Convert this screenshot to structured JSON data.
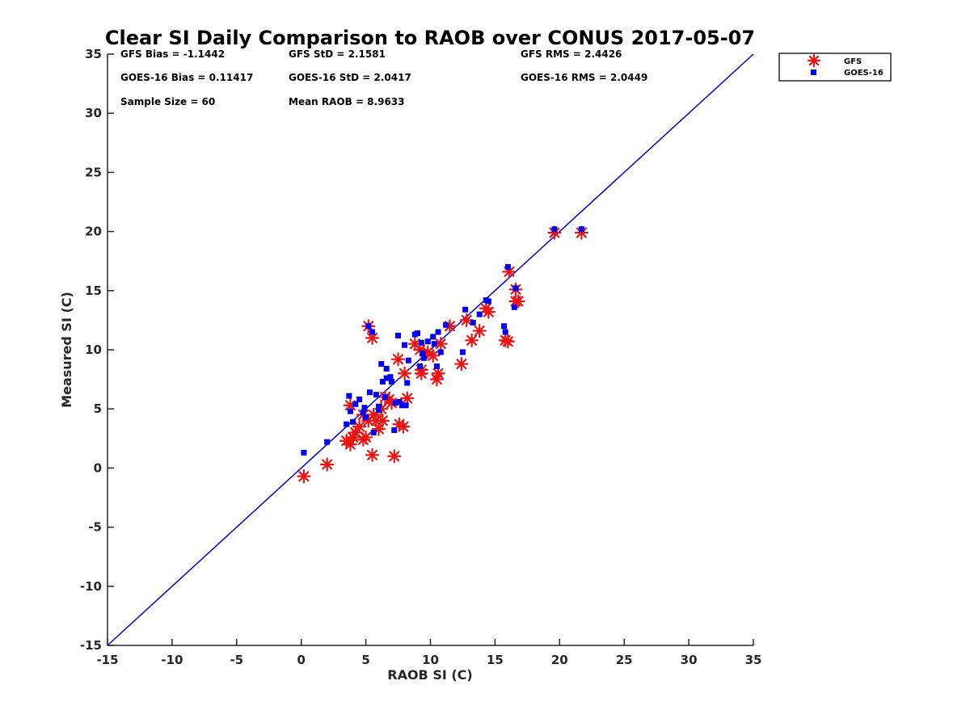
{
  "chart_data": {
    "type": "scatter",
    "title": "Clear SI Daily Comparison to RAOB over CONUS 2017-05-07",
    "xlabel": "RAOB SI (C)",
    "ylabel": "Measured SI (C)",
    "xlim": [
      -15,
      35
    ],
    "ylim": [
      -15,
      35
    ],
    "xticks": [
      "-15",
      "-10",
      "-5",
      "0",
      "5",
      "10",
      "15",
      "20",
      "25",
      "30",
      "35"
    ],
    "yticks": [
      "-15",
      "-10",
      "-5",
      "0",
      "5",
      "10",
      "15",
      "20",
      "25",
      "30",
      "35"
    ],
    "grid": false,
    "legend_position": "outside top-right",
    "reference_line": {
      "type": "one-to-one",
      "from": [
        -15,
        -15
      ],
      "to": [
        35,
        35
      ],
      "color": "#0000cc"
    },
    "stats": {
      "gfs_bias": "GFS Bias = -1.1442",
      "gfs_std": "GFS StD = 2.1581",
      "gfs_rms": "GFS RMS = 2.4426",
      "goes_bias": "GOES-16 Bias = 0.11417",
      "goes_std": "GOES-16 StD = 2.0417",
      "goes_rms": "GOES-16 RMS = 2.0449",
      "sample_size": "Sample Size = 60",
      "mean_raob": "Mean RAOB = 8.9633"
    },
    "series": [
      {
        "name": "GFS",
        "marker": "asterisk",
        "color": "#ee1111",
        "points": [
          [
            0.2,
            -0.7
          ],
          [
            2.0,
            0.3
          ],
          [
            3.5,
            2.3
          ],
          [
            3.8,
            2.0
          ],
          [
            4.0,
            2.6
          ],
          [
            4.2,
            3.0
          ],
          [
            3.8,
            5.3
          ],
          [
            4.5,
            3.5
          ],
          [
            4.8,
            4.5
          ],
          [
            4.8,
            2.4
          ],
          [
            5.0,
            2.6
          ],
          [
            5.2,
            4.0
          ],
          [
            5.5,
            1.1
          ],
          [
            5.6,
            4.5
          ],
          [
            5.8,
            4.0
          ],
          [
            6.0,
            3.3
          ],
          [
            6.2,
            5.0
          ],
          [
            6.3,
            4.0
          ],
          [
            6.5,
            6.0
          ],
          [
            6.8,
            5.8
          ],
          [
            7.0,
            5.5
          ],
          [
            7.2,
            1.0
          ],
          [
            7.5,
            9.2
          ],
          [
            7.6,
            3.7
          ],
          [
            7.9,
            3.5
          ],
          [
            8.2,
            5.9
          ],
          [
            8.0,
            8.0
          ],
          [
            8.8,
            10.5
          ],
          [
            9.2,
            10.0
          ],
          [
            9.3,
            8.3
          ],
          [
            9.3,
            8.0
          ],
          [
            9.8,
            9.8
          ],
          [
            10.2,
            9.5
          ],
          [
            10.5,
            7.5
          ],
          [
            10.6,
            8.0
          ],
          [
            10.8,
            10.5
          ],
          [
            5.2,
            12.0
          ],
          [
            5.5,
            11.0
          ],
          [
            11.5,
            12.0
          ],
          [
            12.4,
            8.8
          ],
          [
            12.8,
            12.5
          ],
          [
            13.2,
            10.8
          ],
          [
            13.8,
            11.6
          ],
          [
            14.5,
            13.2
          ],
          [
            14.3,
            13.5
          ],
          [
            15.8,
            10.8
          ],
          [
            16.0,
            10.7
          ],
          [
            16.1,
            16.6
          ],
          [
            16.6,
            15.1
          ],
          [
            16.6,
            14.1
          ],
          [
            16.8,
            14.1
          ],
          [
            19.6,
            19.9
          ],
          [
            21.7,
            19.9
          ]
        ]
      },
      {
        "name": "GOES-16",
        "marker": "square",
        "color": "#0000ee",
        "points": [
          [
            0.2,
            1.3
          ],
          [
            2.0,
            2.2
          ],
          [
            3.5,
            3.7
          ],
          [
            3.7,
            6.1
          ],
          [
            3.8,
            4.8
          ],
          [
            4.0,
            3.9
          ],
          [
            4.2,
            5.4
          ],
          [
            4.5,
            5.8
          ],
          [
            4.8,
            4.7
          ],
          [
            4.9,
            5.1
          ],
          [
            5.0,
            4.3
          ],
          [
            5.2,
            12.0
          ],
          [
            5.3,
            6.4
          ],
          [
            5.5,
            11.5
          ],
          [
            5.6,
            3.0
          ],
          [
            5.8,
            6.2
          ],
          [
            6.0,
            5.2
          ],
          [
            6.0,
            4.9
          ],
          [
            6.2,
            8.8
          ],
          [
            6.3,
            7.3
          ],
          [
            6.5,
            6.0
          ],
          [
            6.6,
            7.6
          ],
          [
            6.6,
            8.4
          ],
          [
            6.9,
            7.7
          ],
          [
            7.0,
            7.3
          ],
          [
            7.2,
            3.2
          ],
          [
            7.3,
            5.5
          ],
          [
            7.5,
            11.2
          ],
          [
            7.6,
            5.6
          ],
          [
            7.8,
            5.3
          ],
          [
            8.0,
            10.4
          ],
          [
            8.1,
            5.3
          ],
          [
            8.2,
            7.2
          ],
          [
            8.3,
            9.1
          ],
          [
            8.8,
            11.3
          ],
          [
            9.0,
            11.4
          ],
          [
            9.2,
            8.6
          ],
          [
            9.3,
            10.6
          ],
          [
            9.4,
            9.7
          ],
          [
            9.5,
            9.3
          ],
          [
            9.8,
            10.7
          ],
          [
            10.2,
            11.1
          ],
          [
            10.3,
            10.5
          ],
          [
            10.5,
            8.6
          ],
          [
            10.6,
            11.5
          ],
          [
            10.8,
            9.8
          ],
          [
            11.2,
            12.1
          ],
          [
            12.5,
            9.8
          ],
          [
            12.7,
            13.4
          ],
          [
            13.3,
            12.3
          ],
          [
            13.8,
            13.0
          ],
          [
            14.3,
            14.2
          ],
          [
            14.5,
            14.1
          ],
          [
            15.7,
            12.0
          ],
          [
            15.8,
            11.5
          ],
          [
            16.0,
            17.0
          ],
          [
            16.5,
            13.6
          ],
          [
            16.6,
            15.2
          ],
          [
            19.6,
            20.2
          ],
          [
            21.7,
            20.2
          ]
        ]
      }
    ]
  }
}
